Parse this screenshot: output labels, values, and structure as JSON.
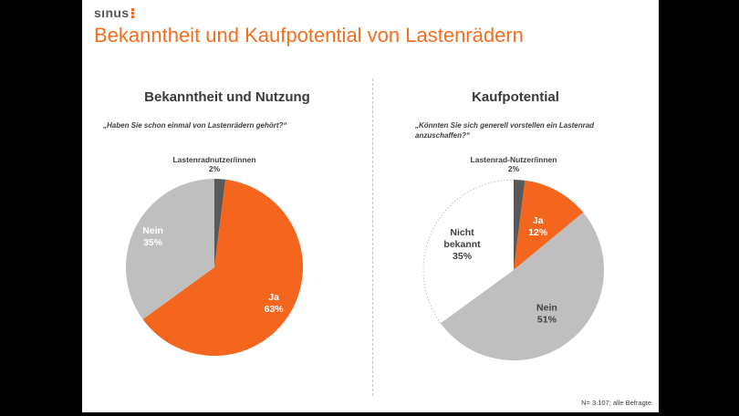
{
  "logo": {
    "text": "sınus"
  },
  "page_title": "Bekanntheit und Kaufpotential von Lastenrädern",
  "footnote": "N= 3.107; alle Befragte",
  "colors": {
    "accent_orange": "#F4661D",
    "title_orange": "#F56E1E",
    "light_gray": "#BFBFBF",
    "dark_gray": "#595959",
    "text_dark": "#3F3F3F",
    "white_slice_border": "#C0C0C0"
  },
  "chart_data": [
    {
      "type": "pie",
      "title": "Bekanntheit und Nutzung",
      "question": "„Haben Sie schon einmal von Lastenrädern gehört?“",
      "callout": [
        "Lastenradnutzer/innen",
        "2%"
      ],
      "start_angle_deg": 0,
      "direction": "clockwise",
      "legend_position": "none",
      "slices": [
        {
          "label": "Lastenradnutzer/innen",
          "pct": 2,
          "color": "#595959"
        },
        {
          "label": "Ja",
          "pct": 63,
          "color": "#F4661D",
          "text_color": "#FFFFFF",
          "label_r": 0.78,
          "label_lines": [
            "Ja",
            "63%"
          ]
        },
        {
          "label": "Nein",
          "pct": 35,
          "color": "#BFBFBF",
          "text_color": "#FFFFFF",
          "label_r": 0.78,
          "label_lines": [
            "Nein",
            "35%"
          ]
        }
      ]
    },
    {
      "type": "pie",
      "title": "Kaufpotential",
      "question": [
        "„Könnten Sie sich generell vorstellen ein Lastenrad",
        "anzuschaffen?“"
      ],
      "callout": [
        "Lastenrad-Nutzer/innen",
        "2%"
      ],
      "start_angle_deg": 0,
      "direction": "clockwise",
      "legend_position": "none",
      "slices": [
        {
          "label": "Lastenrad-Nutzer/innen",
          "pct": 2,
          "color": "#595959"
        },
        {
          "label": "Ja",
          "pct": 12,
          "color": "#F4661D",
          "text_color": "#FFFFFF",
          "label_r": 0.56,
          "label_lines": [
            "Ja",
            "12%"
          ]
        },
        {
          "label": "Nein",
          "pct": 51,
          "color": "#BFBFBF",
          "text_color": "#3F3F3F",
          "label_r": 0.6,
          "label_lines": [
            "Nein",
            "51%"
          ]
        },
        {
          "label": "Nicht bekannt",
          "pct": 35,
          "color": "#FFFFFF",
          "text_color": "#3F3F3F",
          "label_r": 0.64,
          "arc_border": "#C0C0C0",
          "label_lines": [
            "Nicht",
            "bekannt",
            "35%"
          ]
        }
      ]
    }
  ]
}
